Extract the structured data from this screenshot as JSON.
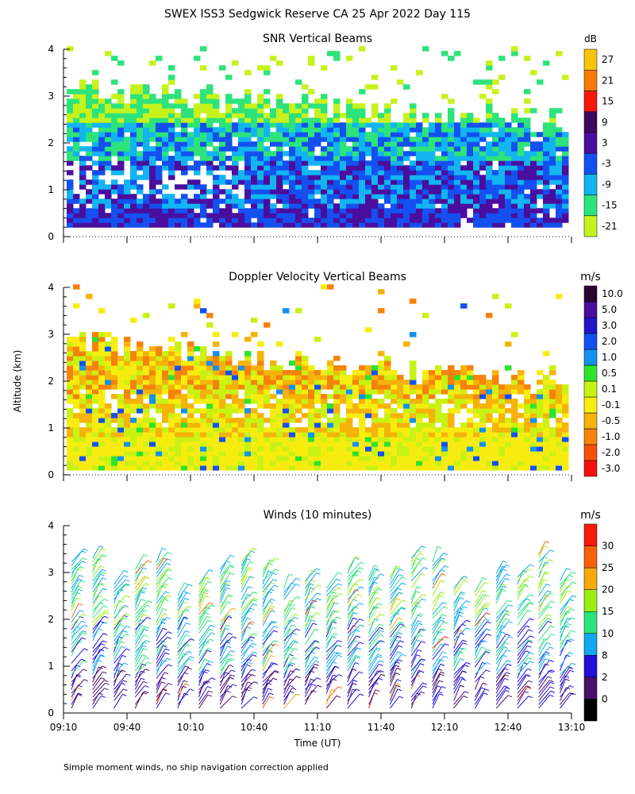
{
  "title": "SWEX ISS3 Sedgwick Reserve CA  25 Apr 2022 Day 115",
  "footnote": "Simple moment winds, no ship navigation correction applied",
  "chart_data": [
    {
      "type": "heatmap",
      "title": "SNR Vertical Beams",
      "unit": "dB",
      "ylim": [
        0,
        4
      ],
      "y_ticks": [
        "0",
        "1",
        "2",
        "3",
        "4"
      ],
      "colorbar": {
        "colors": [
          "#c6f21d",
          "#2de37b",
          "#12b5f0",
          "#1450f0",
          "#4a0e9e",
          "#3a0a5e",
          "#f5170a",
          "#f57a0a",
          "#f7c40a"
        ],
        "labels": [
          "-21",
          "-15",
          "-9",
          "-3",
          "3",
          "9",
          "15",
          "21",
          "27"
        ]
      }
    },
    {
      "type": "heatmap",
      "title": "Doppler Velocity Vertical Beams",
      "unit": "m/s",
      "ylim": [
        0,
        4
      ],
      "y_ticks": [
        "0",
        "1",
        "2",
        "3",
        "4"
      ],
      "colorbar": {
        "colors": [
          "#f51010",
          "#f5500a",
          "#f5820a",
          "#f5b30a",
          "#f7ec10",
          "#c8f214",
          "#2de32d",
          "#1490f0",
          "#1450f0",
          "#2414c8",
          "#4a0e9e",
          "#2a0530"
        ],
        "labels": [
          "-3.0",
          "-2.0",
          "-1.0",
          "-0.5",
          "-0.1",
          "0.1",
          "0.5",
          "1.0",
          "2.0",
          "3.0",
          "5.0",
          "10.0"
        ]
      }
    },
    {
      "type": "wind-barbs",
      "title": "Winds (10 minutes)",
      "unit": "m/s",
      "ylim": [
        0,
        4
      ],
      "y_ticks": [
        "0",
        "1",
        "2",
        "3",
        "4"
      ],
      "x_ticks": [
        "09:10",
        "09:40",
        "10:10",
        "10:40",
        "11:10",
        "11:40",
        "12:10",
        "12:40",
        "13:10"
      ],
      "xlabel": "Time (UT)",
      "ylabel": "Altitude (km)",
      "colorbar": {
        "colors": [
          "#000000",
          "#4a0e6e",
          "#2010d8",
          "#12a8f0",
          "#2de37b",
          "#9aee14",
          "#f7a80a",
          "#f5620a",
          "#f51a0a"
        ],
        "labels": [
          "0",
          "2",
          "8",
          "10",
          "15",
          "20",
          "25",
          "30"
        ]
      }
    }
  ]
}
